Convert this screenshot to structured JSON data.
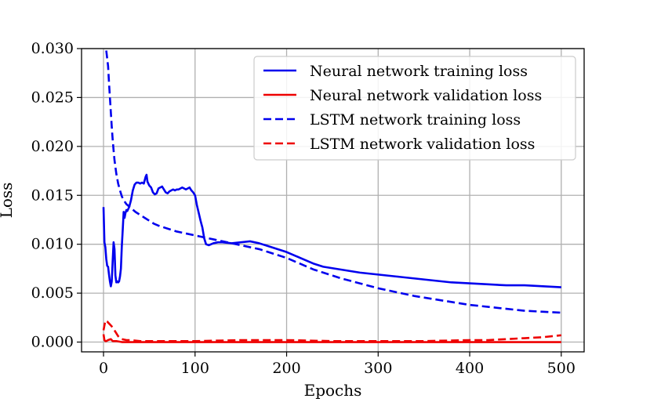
{
  "chart_data": {
    "type": "line",
    "title": "",
    "xlabel": "Epochs",
    "ylabel": "Loss",
    "xlim": [
      -24,
      525
    ],
    "ylim": [
      -0.001,
      0.03
    ],
    "xticks": [
      0,
      100,
      200,
      300,
      400,
      500
    ],
    "xtick_labels": [
      "0",
      "100",
      "200",
      "300",
      "400",
      "500"
    ],
    "yticks": [
      0.0,
      0.005,
      0.01,
      0.015,
      0.02,
      0.025,
      0.03
    ],
    "ytick_labels": [
      "0.000",
      "0.005",
      "0.010",
      "0.015",
      "0.020",
      "0.025",
      "0.030"
    ],
    "grid": true,
    "legend_position": "top-right",
    "series": [
      {
        "name": "Neural network training loss",
        "color": "#0000ee",
        "linestyle": "solid",
        "x": [
          0,
          1,
          2,
          3,
          4,
          5,
          6,
          7,
          8,
          9,
          10,
          11,
          12,
          13,
          14,
          15,
          16,
          17,
          18,
          19,
          20,
          21,
          22,
          23,
          24,
          25,
          26,
          28,
          30,
          32,
          34,
          36,
          38,
          40,
          42,
          44,
          46,
          47,
          48,
          50,
          52,
          54,
          56,
          58,
          60,
          62,
          64,
          66,
          68,
          70,
          72,
          74,
          76,
          78,
          80,
          82,
          84,
          86,
          88,
          90,
          92,
          94,
          96,
          98,
          100,
          102,
          104,
          106,
          108,
          110,
          112,
          115,
          120,
          125,
          130,
          140,
          150,
          160,
          170,
          180,
          190,
          200,
          210,
          220,
          230,
          240,
          260,
          280,
          300,
          320,
          340,
          360,
          380,
          400,
          420,
          440,
          460,
          480,
          500
        ],
        "y": [
          0.0138,
          0.0102,
          0.0097,
          0.0085,
          0.0078,
          0.0077,
          0.0069,
          0.0062,
          0.0057,
          0.0062,
          0.0083,
          0.0102,
          0.0095,
          0.0068,
          0.0061,
          0.0062,
          0.0061,
          0.0062,
          0.0067,
          0.0075,
          0.0098,
          0.0115,
          0.0133,
          0.0127,
          0.0132,
          0.0135,
          0.0134,
          0.0138,
          0.0145,
          0.0155,
          0.0161,
          0.0163,
          0.0163,
          0.0162,
          0.0163,
          0.0162,
          0.0169,
          0.0171,
          0.0164,
          0.016,
          0.0158,
          0.0153,
          0.0151,
          0.0152,
          0.0157,
          0.0158,
          0.0159,
          0.0156,
          0.0153,
          0.0152,
          0.0154,
          0.0155,
          0.0156,
          0.0155,
          0.0156,
          0.0156,
          0.0157,
          0.0158,
          0.0157,
          0.0156,
          0.0157,
          0.0158,
          0.0155,
          0.0153,
          0.015,
          0.014,
          0.0132,
          0.0124,
          0.0117,
          0.0106,
          0.01,
          0.0099,
          0.0101,
          0.0102,
          0.0102,
          0.0101,
          0.0102,
          0.0103,
          0.0101,
          0.0098,
          0.0095,
          0.0092,
          0.0088,
          0.0084,
          0.008,
          0.0077,
          0.0074,
          0.0071,
          0.0069,
          0.0067,
          0.0065,
          0.0063,
          0.0061,
          0.006,
          0.0059,
          0.0058,
          0.0058,
          0.0057,
          0.0056
        ]
      },
      {
        "name": "Neural network validation loss",
        "color": "#ee0000",
        "linestyle": "solid",
        "x": [
          0,
          1,
          2,
          3,
          5,
          8,
          10,
          14,
          20,
          30,
          50,
          100,
          200,
          300,
          400,
          500
        ],
        "y": [
          0.0008,
          0.0002,
          0.0001,
          0.0001,
          0.0002,
          0.0003,
          0.0001,
          0.0001,
          0.0,
          0.0,
          0.0,
          0.0,
          0.0,
          0.0,
          0.0,
          0.0
        ]
      },
      {
        "name": "LSTM network training loss",
        "color": "#0000ee",
        "linestyle": "dashed",
        "x": [
          3,
          4,
          5,
          6,
          7,
          8,
          9,
          10,
          11,
          12,
          14,
          16,
          18,
          20,
          22,
          25,
          30,
          35,
          40,
          45,
          50,
          55,
          60,
          70,
          80,
          90,
          100,
          110,
          120,
          130,
          140,
          150,
          160,
          170,
          180,
          190,
          200,
          210,
          220,
          230,
          240,
          250,
          260,
          280,
          300,
          320,
          340,
          360,
          380,
          400,
          420,
          440,
          460,
          480,
          500
        ],
        "y": [
          0.0298,
          0.029,
          0.0282,
          0.0265,
          0.025,
          0.0235,
          0.022,
          0.0207,
          0.0196,
          0.0186,
          0.0172,
          0.0162,
          0.0155,
          0.0149,
          0.0145,
          0.0141,
          0.0137,
          0.0133,
          0.013,
          0.0127,
          0.0124,
          0.0121,
          0.0119,
          0.0116,
          0.0113,
          0.0111,
          0.0109,
          0.0107,
          0.0105,
          0.0103,
          0.0101,
          0.0099,
          0.0097,
          0.0095,
          0.0092,
          0.0089,
          0.0086,
          0.0082,
          0.0078,
          0.0074,
          0.0071,
          0.0068,
          0.0065,
          0.006,
          0.0055,
          0.0051,
          0.0047,
          0.0044,
          0.0041,
          0.0038,
          0.0036,
          0.0034,
          0.0032,
          0.0031,
          0.003
        ]
      },
      {
        "name": "LSTM network validation loss",
        "color": "#ee0000",
        "linestyle": "dashed",
        "x": [
          0,
          2,
          4,
          6,
          8,
          10,
          12,
          14,
          16,
          18,
          20,
          25,
          30,
          40,
          60,
          100,
          150,
          200,
          250,
          300,
          350,
          400,
          420,
          440,
          460,
          480,
          500
        ],
        "y": [
          0.0012,
          0.0022,
          0.0021,
          0.0019,
          0.0017,
          0.0015,
          0.0012,
          0.0009,
          0.0006,
          0.0004,
          0.0003,
          0.0002,
          0.0002,
          0.0001,
          0.0001,
          0.0001,
          0.0002,
          0.0002,
          0.0001,
          0.0001,
          0.0001,
          0.0002,
          0.0002,
          0.0003,
          0.0004,
          0.0005,
          0.0007
        ]
      }
    ]
  }
}
